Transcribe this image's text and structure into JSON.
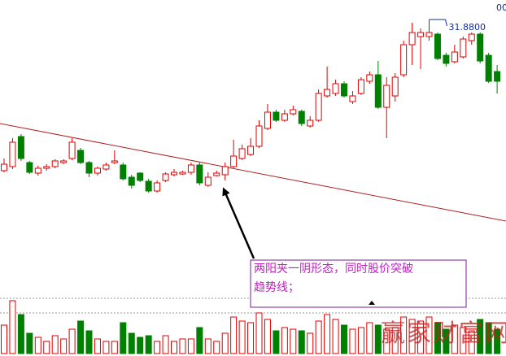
{
  "chart_data": {
    "type": "candlestick",
    "up_color": "#e00000",
    "down_color": "#008000",
    "ylim": [
      21.8,
      32.6
    ],
    "open": [
      26.3,
      26.45,
      27.56,
      26.6,
      26.21,
      26.39,
      26.45,
      26.6,
      26.75,
      27.05,
      26.6,
      26.21,
      26.36,
      26.6,
      26.51,
      26.06,
      26.21,
      25.91,
      25.55,
      25.94,
      26.15,
      26.18,
      26.24,
      26.51,
      25.76,
      26.12,
      26.15,
      26.45,
      26.75,
      26.9,
      27.2,
      27.86,
      28.46,
      28.16,
      28.4,
      28.49,
      27.95,
      28.16,
      29.06,
      29.15,
      29.51,
      28.85,
      29.15,
      29.6,
      29.84,
      28.64,
      29.06,
      29.84,
      30.95,
      31.25,
      31.25,
      31.34,
      30.56,
      30.32,
      30.5,
      31.1,
      31.34,
      30.56,
      29.96
    ],
    "high": [
      26.75,
      27.5,
      27.65,
      26.66,
      26.48,
      26.54,
      26.72,
      26.72,
      27.5,
      27.14,
      26.66,
      26.45,
      26.6,
      27.05,
      26.6,
      26.15,
      26.24,
      26.0,
      25.94,
      26.24,
      26.36,
      26.3,
      26.6,
      26.6,
      26.24,
      26.3,
      26.6,
      27.44,
      27.26,
      27.5,
      28.16,
      28.76,
      28.55,
      28.55,
      28.7,
      28.55,
      28.31,
      29.3,
      30.14,
      29.66,
      29.6,
      29.24,
      29.75,
      29.96,
      30.35,
      29.75,
      29.9,
      31.1,
      31.76,
      31.55,
      31.88,
      31.4,
      30.65,
      30.95,
      31.25,
      31.4,
      31.4,
      30.65,
      30.2
    ],
    "low": [
      26.24,
      26.36,
      26.66,
      26.18,
      26.12,
      26.3,
      26.39,
      26.54,
      26.69,
      26.54,
      26.06,
      26.12,
      26.3,
      26.54,
      25.94,
      25.64,
      25.88,
      25.49,
      25.49,
      25.88,
      26.09,
      26.15,
      26.15,
      25.76,
      25.7,
      26.09,
      25.94,
      26.39,
      26.69,
      26.84,
      27.14,
      27.8,
      28.1,
      28.1,
      28.34,
      27.95,
      27.89,
      28.1,
      29.0,
      29.06,
      29.0,
      28.76,
      29.09,
      29.51,
      28.58,
      27.5,
      28.85,
      29.75,
      30.2,
      30.05,
      31.1,
      30.38,
      30.14,
      30.26,
      30.44,
      30.95,
      30.26,
      29.54,
      29.15
    ],
    "close": [
      26.54,
      27.35,
      26.75,
      26.24,
      26.39,
      26.45,
      26.66,
      26.66,
      27.35,
      26.6,
      26.21,
      26.39,
      26.51,
      26.66,
      26.0,
      25.76,
      25.94,
      25.55,
      25.85,
      26.18,
      26.24,
      26.24,
      26.51,
      25.85,
      26.06,
      26.21,
      26.45,
      26.84,
      27.11,
      27.2,
      27.95,
      28.46,
      28.16,
      28.4,
      28.55,
      28.04,
      28.16,
      29.15,
      29.3,
      29.51,
      29.06,
      29.06,
      29.66,
      29.84,
      28.64,
      29.45,
      29.75,
      30.95,
      31.4,
      31.4,
      31.4,
      30.44,
      30.26,
      30.68,
      31.16,
      31.34,
      30.35,
      29.6,
      29.6
    ],
    "max_label": {
      "value": 31.88,
      "label": "31.8800"
    },
    "volume": [
      35,
      65,
      48,
      25,
      20,
      15,
      22,
      18,
      30,
      40,
      28,
      18,
      15,
      15,
      38,
      25,
      20,
      22,
      15,
      22,
      15,
      18,
      18,
      32,
      18,
      15,
      25,
      45,
      40,
      38,
      50,
      42,
      28,
      32,
      30,
      28,
      25,
      40,
      48,
      42,
      35,
      30,
      32,
      38,
      35,
      30,
      32,
      45,
      42,
      40,
      45,
      38,
      30,
      35,
      32,
      28,
      42,
      38,
      30
    ],
    "volume_ylim": [
      0,
      70
    ],
    "corner_label": "00",
    "annotation": [
      "两阳夹一阴形态，同时股价突破",
      "趋势线；"
    ],
    "watermark": "赢家财富网"
  }
}
